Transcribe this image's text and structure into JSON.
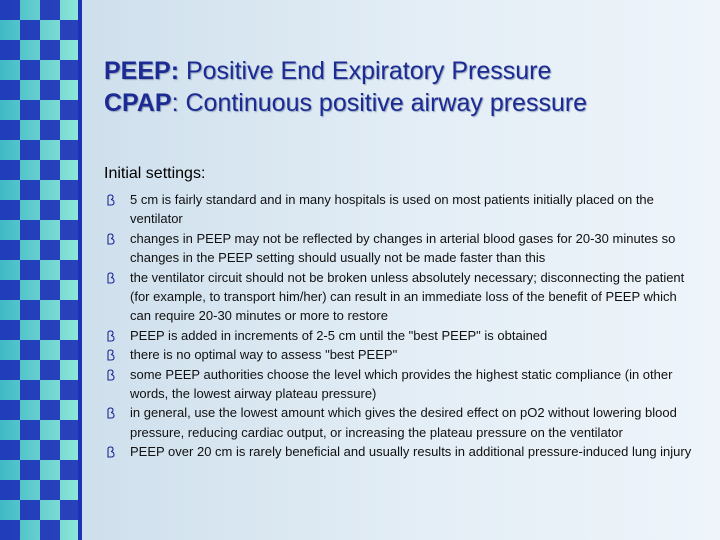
{
  "title": [
    {
      "term": "PEEP:",
      "text": " Positive End Expiratory Pressure"
    },
    {
      "term": "CPAP",
      "text": ": Continuous positive airway pressure"
    }
  ],
  "heading": "Initial settings:",
  "bullets": [
    "5 cm is fairly standard and in many hospitals is used on most patients initially placed on the ventilator",
    "changes in PEEP may not be reflected by changes in arterial blood gases for 20-30 minutes so changes in the PEEP setting should usually not be made faster than this",
    "the ventilator circuit should not be broken unless absolutely necessary; disconnecting the patient (for example, to transport him/her) can result in an immediate loss of the benefit of PEEP which can require 20-30 minutes or more to restore",
    "PEEP is added in increments of 2-5 cm until the \"best PEEP\" is obtained",
    "there is no optimal way to assess \"best PEEP\"",
    "some PEEP authorities choose the level which provides the highest static compliance (in other words, the lowest airway plateau pressure)",
    "in general, use the lowest amount which gives the desired effect on pO2 without lowering blood pressure, reducing cardiac output, or increasing the plateau pressure on the ventilator",
    "PEEP over 20 cm is rarely beneficial and usually results in additional pressure-induced lung injury"
  ]
}
